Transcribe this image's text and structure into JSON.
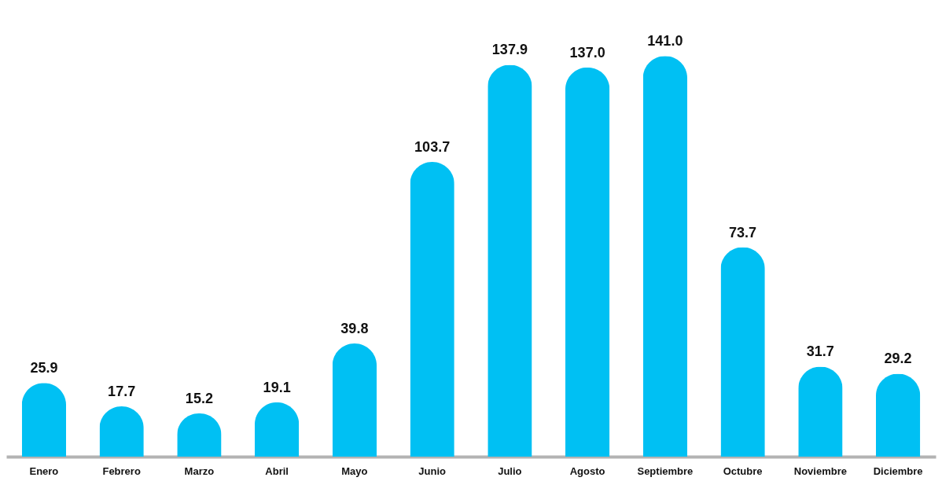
{
  "chart_data": {
    "type": "bar",
    "categories": [
      "Enero",
      "Febrero",
      "Marzo",
      "Abril",
      "Mayo",
      "Junio",
      "Julio",
      "Agosto",
      "Septiembre",
      "Octubre",
      "Noviembre",
      "Diciembre"
    ],
    "values": [
      25.9,
      17.7,
      15.2,
      19.1,
      39.8,
      103.7,
      137.9,
      137.0,
      141.0,
      73.7,
      31.7,
      29.2
    ],
    "value_labels": [
      "25.9",
      "17.7",
      "15.2",
      "19.1",
      "39.8",
      "103.7",
      "137.9",
      "137.0",
      "141.0",
      "73.7",
      "31.7",
      "29.2"
    ],
    "color": "#00c0f3"
  }
}
